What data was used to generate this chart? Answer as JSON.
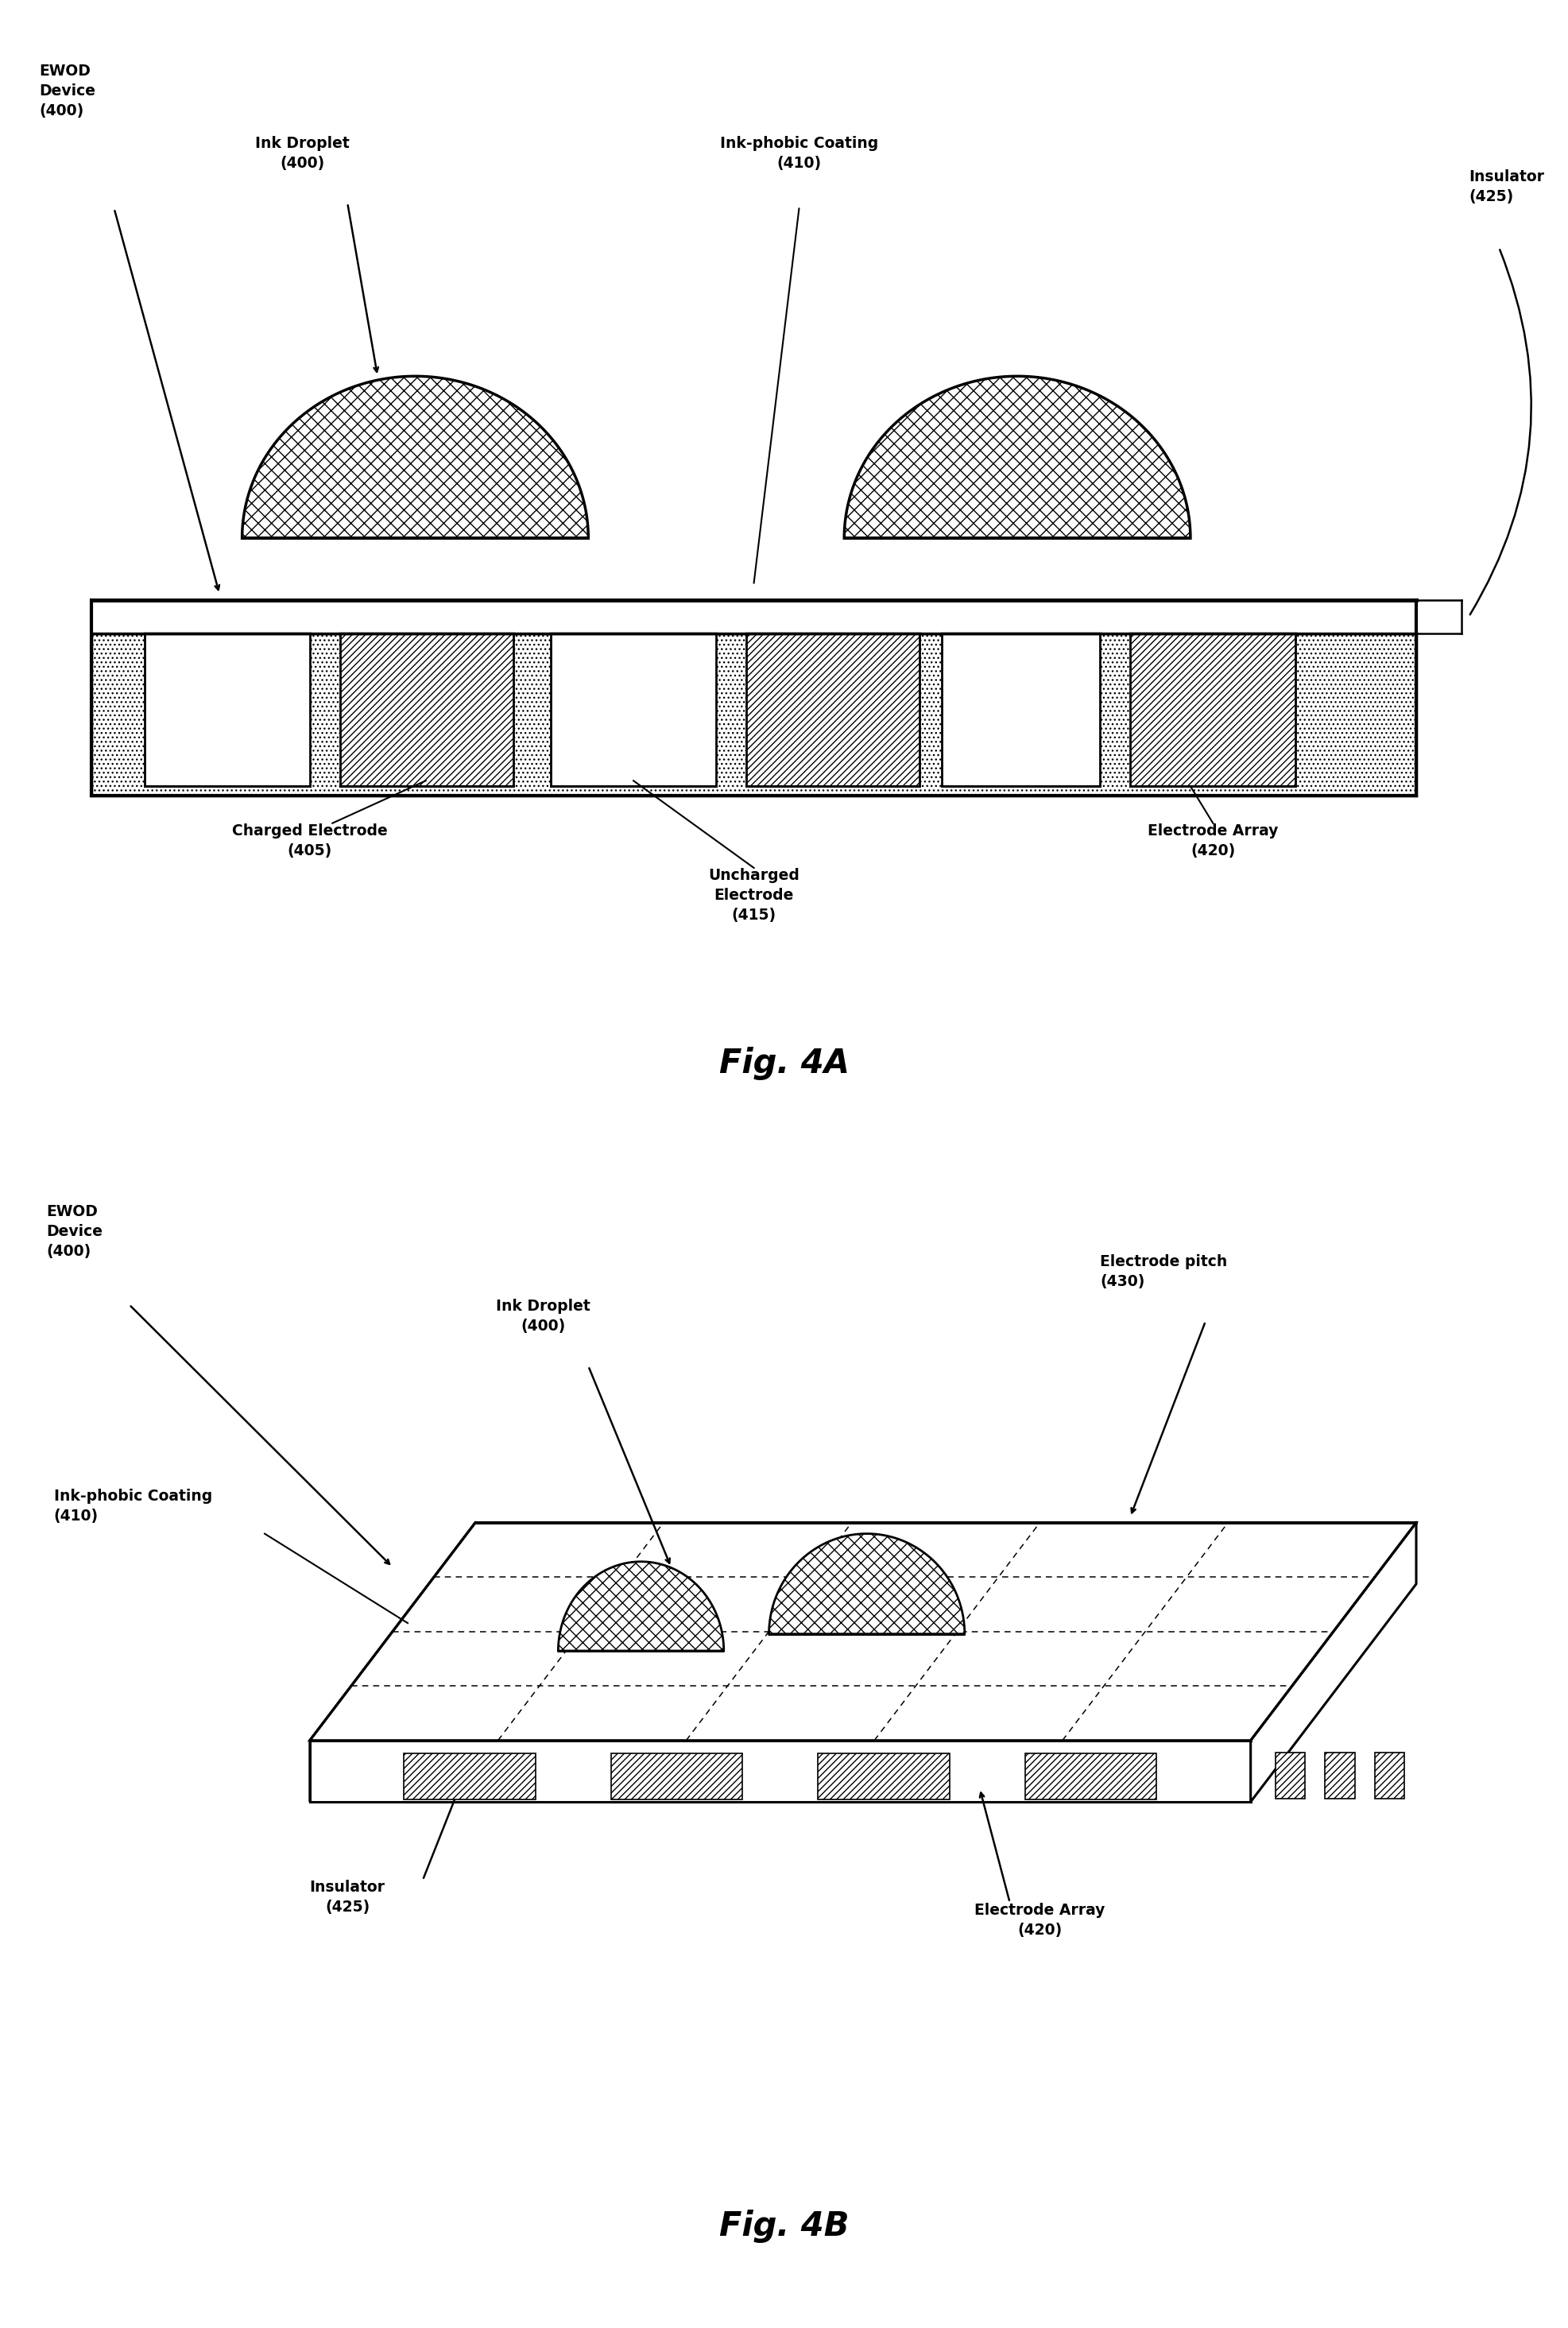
{
  "bg_color": "#ffffff",
  "fig_width": 19.73,
  "fig_height": 29.29,
  "fig4a": {
    "title": "Fig. 4A",
    "labels": {
      "ewod_device": "EWOD\nDevice\n(400)",
      "ink_droplet": "Ink Droplet\n(400)",
      "ink_phobic": "Ink-phobic Coating\n(410)",
      "insulator": "Insulator\n(425)",
      "charged_electrode": "Charged Electrode\n(405)",
      "uncharged_electrode": "Uncharged\nElectrode\n(415)",
      "electrode_array": "Electrode Array\n(420)"
    }
  },
  "fig4b": {
    "title": "Fig. 4B",
    "labels": {
      "ewod_device": "EWOD\nDevice\n(400)",
      "ink_droplet": "Ink Droplet\n(400)",
      "ink_phobic": "Ink-phobic Coating\n(410)",
      "insulator": "Insulator\n(425)",
      "electrode_pitch": "Electrode pitch\n(430)",
      "electrode_array": "Electrode Array\n(420)"
    }
  }
}
